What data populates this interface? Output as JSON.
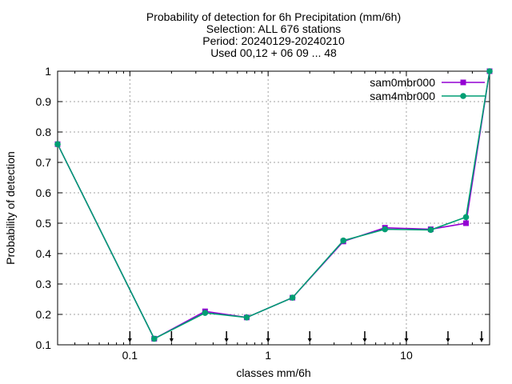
{
  "chart_data": {
    "type": "line",
    "title_lines": [
      "Probability of detection  for 6h Precipitation (mm/6h)",
      "Selection: ALL    676 stations",
      "Period: 20240129-20240210",
      "Used 00,12 + 06 09 ... 48"
    ],
    "xlabel": "classes mm/6h",
    "ylabel": "Probability of detection",
    "x_scale": "log",
    "xlim": [
      0.03,
      40
    ],
    "ylim": [
      0.1,
      1.0
    ],
    "x_ticks": [
      {
        "value": 0.1,
        "label": "0.1"
      },
      {
        "value": 1,
        "label": "1"
      },
      {
        "value": 10,
        "label": "10"
      }
    ],
    "y_ticks": [
      {
        "value": 0.1,
        "label": "0.1"
      },
      {
        "value": 0.2,
        "label": "0.2"
      },
      {
        "value": 0.3,
        "label": "0.3"
      },
      {
        "value": 0.4,
        "label": "0.4"
      },
      {
        "value": 0.5,
        "label": "0.5"
      },
      {
        "value": 0.6,
        "label": "0.6"
      },
      {
        "value": 0.7,
        "label": "0.7"
      },
      {
        "value": 0.8,
        "label": "0.8"
      },
      {
        "value": 0.9,
        "label": "0.9"
      },
      {
        "value": 1,
        "label": "1"
      }
    ],
    "threshold_markers": [
      0.1,
      0.2,
      0.5,
      1,
      2,
      5,
      10,
      20,
      35
    ],
    "grid": true,
    "legend_position": "top-right",
    "series": [
      {
        "name": "sam0mbr000",
        "color": "#9400d3",
        "marker": "square",
        "x": [
          0.03,
          0.15,
          0.35,
          0.7,
          1.5,
          3.5,
          7,
          15,
          27,
          40
        ],
        "y": [
          0.76,
          0.12,
          0.21,
          0.19,
          0.255,
          0.44,
          0.485,
          0.48,
          0.5,
          1.0
        ]
      },
      {
        "name": "sam4mbr000",
        "color": "#009e73",
        "marker": "circle",
        "x": [
          0.03,
          0.15,
          0.35,
          0.7,
          1.5,
          3.5,
          7,
          15,
          27,
          40
        ],
        "y": [
          0.76,
          0.12,
          0.205,
          0.19,
          0.255,
          0.443,
          0.48,
          0.478,
          0.52,
          1.0
        ]
      }
    ]
  }
}
